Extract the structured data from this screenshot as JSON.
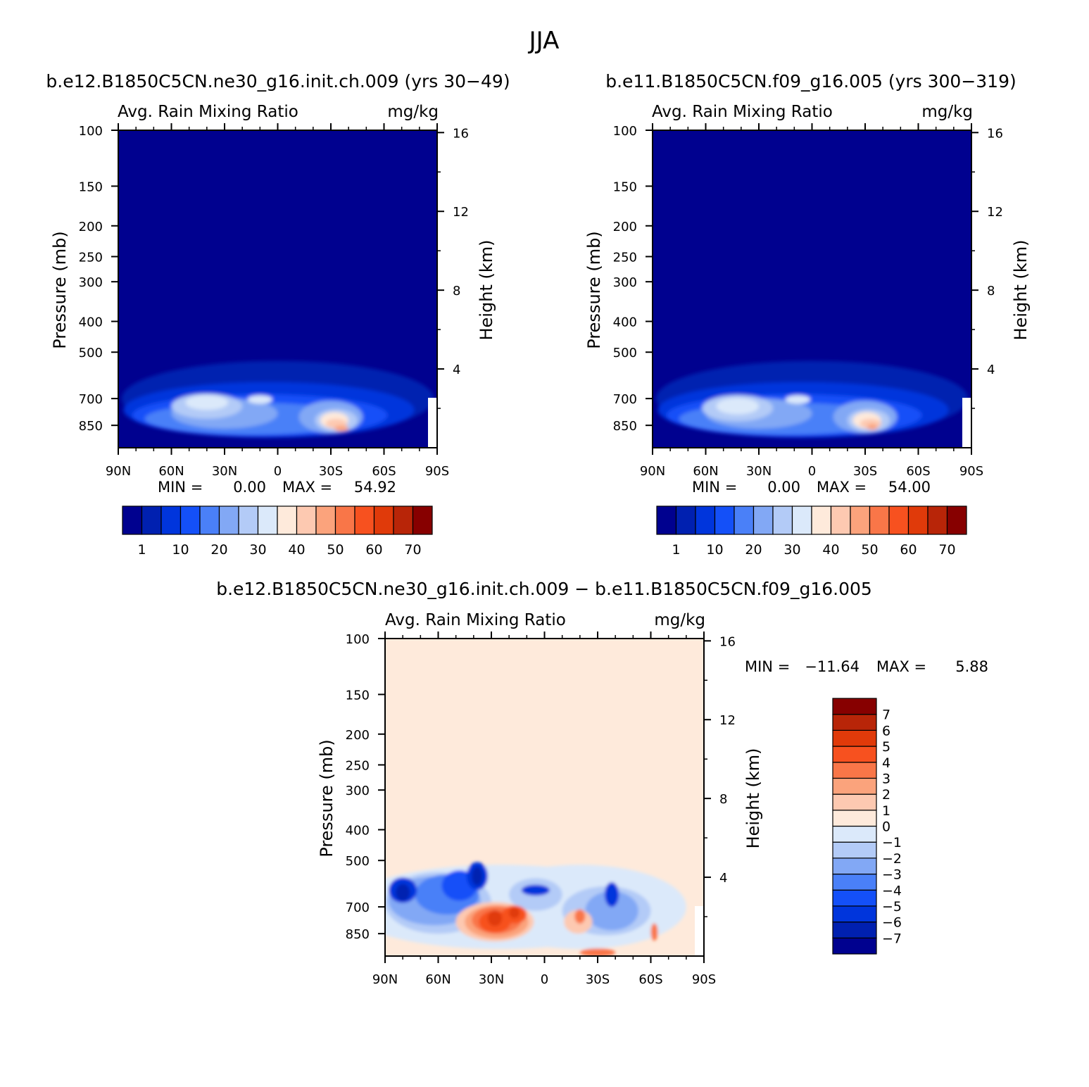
{
  "figure_title": "JJA",
  "chart_data": [
    {
      "type": "heatmap",
      "title": "b.e12.B1850C5CN.ne30_g16.init.ch.009 (yrs 30−49)",
      "subtitle_left": "Avg. Rain Mixing Ratio",
      "subtitle_right": "mg/kg",
      "ylabel": "Pressure (mb)",
      "y2label": "Height (km)",
      "x_ticks": [
        "90N",
        "60N",
        "30N",
        "0",
        "30S",
        "60S",
        "90S"
      ],
      "x_values": [
        90,
        60,
        30,
        0,
        -30,
        -60,
        -90
      ],
      "y_ticks": [
        "100",
        "150",
        "200",
        "250",
        "300",
        "400",
        "500",
        "700",
        "850"
      ],
      "y_values": [
        100,
        150,
        200,
        250,
        300,
        400,
        500,
        700,
        850
      ],
      "y2_ticks": [
        "16",
        "12",
        "8",
        "4"
      ],
      "y2_values": [
        16,
        12,
        8,
        4
      ],
      "ylim": [
        100,
        1000
      ],
      "min_label": "MIN =",
      "min_value": "0.00",
      "max_label": "MAX =",
      "max_value": "54.92",
      "background_color": "#00018f",
      "colorbar": {
        "orientation": "horizontal",
        "colors": [
          "#00018f",
          "#0020b0",
          "#0035dc",
          "#1450f8",
          "#4a80f8",
          "#82a8f5",
          "#b3cbf7",
          "#dbe9fa",
          "#feeadb",
          "#fdc9b1",
          "#fba37c",
          "#f97648",
          "#f7511f",
          "#e03a0a",
          "#b82508",
          "#870000"
        ],
        "labels": [
          "1",
          "10",
          "20",
          "30",
          "40",
          "50",
          "60",
          "70"
        ]
      },
      "features": [
        {
          "level": 1,
          "lat": 0,
          "p": 700,
          "rx": 88,
          "ry": 220
        },
        {
          "level": 2,
          "lat": 5,
          "p": 760,
          "rx": 82,
          "ry": 170
        },
        {
          "level": 3,
          "lat": 10,
          "p": 790,
          "rx": 72,
          "ry": 130
        },
        {
          "level": 4,
          "lat": 15,
          "p": 810,
          "rx": 60,
          "ry": 100
        },
        {
          "level": 5,
          "lat": 30,
          "p": 780,
          "rx": 30,
          "ry": 90
        },
        {
          "level": 5,
          "lat": -30,
          "p": 800,
          "rx": 18,
          "ry": 100
        },
        {
          "level": 6,
          "lat": 40,
          "p": 740,
          "rx": 20,
          "ry": 70
        },
        {
          "level": 6,
          "lat": -33,
          "p": 820,
          "rx": 12,
          "ry": 70
        },
        {
          "level": 7,
          "lat": 40,
          "p": 720,
          "rx": 12,
          "ry": 40
        },
        {
          "level": 7,
          "lat": 10,
          "p": 705,
          "rx": 7,
          "ry": 22
        },
        {
          "level": 8,
          "lat": -32,
          "p": 820,
          "rx": 8,
          "ry": 50
        },
        {
          "level": 9,
          "lat": -33,
          "p": 840,
          "rx": 6,
          "ry": 30
        },
        {
          "level": 10,
          "lat": -36,
          "p": 870,
          "rx": 4,
          "ry": 18
        }
      ]
    },
    {
      "type": "heatmap",
      "title": "b.e11.B1850C5CN.f09_g16.005 (yrs 300−319)",
      "subtitle_left": "Avg. Rain Mixing Ratio",
      "subtitle_right": "mg/kg",
      "ylabel": "Pressure (mb)",
      "y2label": "Height (km)",
      "x_ticks": [
        "90N",
        "60N",
        "30N",
        "0",
        "30S",
        "60S",
        "90S"
      ],
      "x_values": [
        90,
        60,
        30,
        0,
        -30,
        -60,
        -90
      ],
      "y_ticks": [
        "100",
        "150",
        "200",
        "250",
        "300",
        "400",
        "500",
        "700",
        "850"
      ],
      "y_values": [
        100,
        150,
        200,
        250,
        300,
        400,
        500,
        700,
        850
      ],
      "y2_ticks": [
        "16",
        "12",
        "8",
        "4"
      ],
      "y2_values": [
        16,
        12,
        8,
        4
      ],
      "ylim": [
        100,
        1000
      ],
      "min_label": "MIN =",
      "min_value": "0.00",
      "max_label": "MAX =",
      "max_value": "54.00",
      "background_color": "#00018f",
      "colorbar": {
        "orientation": "horizontal",
        "colors": [
          "#00018f",
          "#0020b0",
          "#0035dc",
          "#1450f8",
          "#4a80f8",
          "#82a8f5",
          "#b3cbf7",
          "#dbe9fa",
          "#feeadb",
          "#fdc9b1",
          "#fba37c",
          "#f97648",
          "#f7511f",
          "#e03a0a",
          "#b82508",
          "#870000"
        ],
        "labels": [
          "1",
          "10",
          "20",
          "30",
          "40",
          "50",
          "60",
          "70"
        ]
      },
      "features": [
        {
          "level": 1,
          "lat": 0,
          "p": 700,
          "rx": 88,
          "ry": 220
        },
        {
          "level": 2,
          "lat": 5,
          "p": 760,
          "rx": 82,
          "ry": 170
        },
        {
          "level": 3,
          "lat": 10,
          "p": 790,
          "rx": 72,
          "ry": 130
        },
        {
          "level": 4,
          "lat": 15,
          "p": 810,
          "rx": 60,
          "ry": 100
        },
        {
          "level": 5,
          "lat": 30,
          "p": 780,
          "rx": 30,
          "ry": 90
        },
        {
          "level": 5,
          "lat": -30,
          "p": 800,
          "rx": 18,
          "ry": 100
        },
        {
          "level": 6,
          "lat": 42,
          "p": 750,
          "rx": 20,
          "ry": 75
        },
        {
          "level": 6,
          "lat": -32,
          "p": 820,
          "rx": 12,
          "ry": 70
        },
        {
          "level": 7,
          "lat": 42,
          "p": 740,
          "rx": 12,
          "ry": 45
        },
        {
          "level": 7,
          "lat": 8,
          "p": 705,
          "rx": 7,
          "ry": 22
        },
        {
          "level": 8,
          "lat": -31,
          "p": 820,
          "rx": 8,
          "ry": 50
        },
        {
          "level": 9,
          "lat": -33,
          "p": 840,
          "rx": 6,
          "ry": 30
        },
        {
          "level": 10,
          "lat": -34,
          "p": 860,
          "rx": 3,
          "ry": 18
        }
      ]
    },
    {
      "type": "heatmap",
      "title": "b.e12.B1850C5CN.ne30_g16.init.ch.009 − b.e11.B1850C5CN.f09_g16.005",
      "subtitle_left": "Avg. Rain Mixing Ratio",
      "subtitle_right": "mg/kg",
      "ylabel": "Pressure (mb)",
      "y2label": "Height (km)",
      "x_ticks": [
        "90N",
        "60N",
        "30N",
        "0",
        "30S",
        "60S",
        "90S"
      ],
      "x_values": [
        90,
        60,
        30,
        0,
        -30,
        -60,
        -90
      ],
      "y_ticks": [
        "100",
        "150",
        "200",
        "250",
        "300",
        "400",
        "500",
        "700",
        "850"
      ],
      "y_values": [
        100,
        150,
        200,
        250,
        300,
        400,
        500,
        700,
        850
      ],
      "y2_ticks": [
        "16",
        "12",
        "8",
        "4"
      ],
      "y2_values": [
        16,
        12,
        8,
        4
      ],
      "ylim": [
        100,
        1000
      ],
      "min_label": "MIN =",
      "min_value": "−11.64",
      "max_label": "MAX =",
      "max_value": "5.88",
      "background_color": "#feeadb",
      "colorbar": {
        "orientation": "vertical",
        "colors": [
          "#00018f",
          "#0020b0",
          "#0035dc",
          "#1450f8",
          "#4a80f8",
          "#82a8f5",
          "#b3cbf7",
          "#dbe9fa",
          "#feeadb",
          "#fdc9b1",
          "#fba37c",
          "#f97648",
          "#f7511f",
          "#e03a0a",
          "#b82508",
          "#870000"
        ],
        "labels": [
          "−7",
          "−6",
          "−5",
          "−4",
          "−3",
          "−2",
          "−1",
          "0",
          "1",
          "2",
          "3",
          "4",
          "5",
          "6",
          "7"
        ]
      },
      "features": [
        {
          "level": 7,
          "lat": 25,
          "p": 700,
          "rx": 88,
          "ry": 250
        },
        {
          "level": 7,
          "lat": -20,
          "p": 700,
          "rx": 60,
          "ry": 250
        },
        {
          "level": 6,
          "lat": 60,
          "p": 680,
          "rx": 30,
          "ry": 170
        },
        {
          "level": 6,
          "lat": -35,
          "p": 720,
          "rx": 25,
          "ry": 140
        },
        {
          "level": 6,
          "lat": 5,
          "p": 640,
          "rx": 15,
          "ry": 80
        },
        {
          "level": 5,
          "lat": 62,
          "p": 670,
          "rx": 26,
          "ry": 130
        },
        {
          "level": 5,
          "lat": -38,
          "p": 720,
          "rx": 15,
          "ry": 110
        },
        {
          "level": 4,
          "lat": 55,
          "p": 640,
          "rx": 18,
          "ry": 100
        },
        {
          "level": 3,
          "lat": 48,
          "p": 600,
          "rx": 10,
          "ry": 70
        },
        {
          "level": 2,
          "lat": 80,
          "p": 620,
          "rx": 8,
          "ry": 60
        },
        {
          "level": 2,
          "lat": 38,
          "p": 560,
          "rx": 6,
          "ry": 60
        },
        {
          "level": 2,
          "lat": 5,
          "p": 620,
          "rx": 8,
          "ry": 25
        },
        {
          "level": 2,
          "lat": -38,
          "p": 640,
          "rx": 4,
          "ry": 60
        },
        {
          "level": 1,
          "lat": 80,
          "p": 630,
          "rx": 4,
          "ry": 40
        },
        {
          "level": 1,
          "lat": 38,
          "p": 560,
          "rx": 3,
          "ry": 40
        },
        {
          "level": 9,
          "lat": 28,
          "p": 780,
          "rx": 22,
          "ry": 120
        },
        {
          "level": 9,
          "lat": -19,
          "p": 780,
          "rx": 8,
          "ry": 70
        },
        {
          "level": 10,
          "lat": 27,
          "p": 780,
          "rx": 18,
          "ry": 100
        },
        {
          "level": 11,
          "lat": 27,
          "p": 770,
          "rx": 14,
          "ry": 80
        },
        {
          "level": 12,
          "lat": 28,
          "p": 780,
          "rx": 9,
          "ry": 65
        },
        {
          "level": 13,
          "lat": 28,
          "p": 760,
          "rx": 4,
          "ry": 45
        },
        {
          "level": 12,
          "lat": 17,
          "p": 740,
          "rx": 7,
          "ry": 50
        },
        {
          "level": 13,
          "lat": 17,
          "p": 730,
          "rx": 3,
          "ry": 30
        },
        {
          "level": 11,
          "lat": -20,
          "p": 750,
          "rx": 3,
          "ry": 40
        },
        {
          "level": 11,
          "lat": -62,
          "p": 840,
          "rx": 2,
          "ry": 55
        },
        {
          "level": 11,
          "lat": -30,
          "p": 975,
          "rx": 10,
          "ry": 30
        }
      ]
    }
  ]
}
